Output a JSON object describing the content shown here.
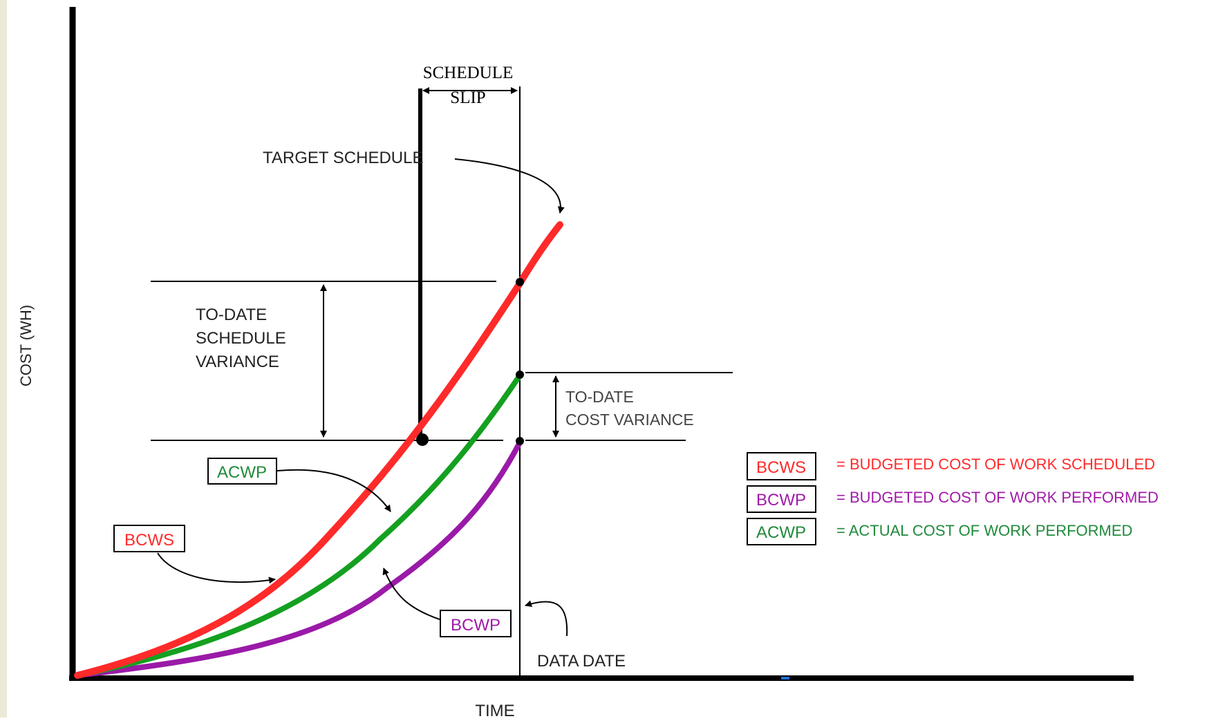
{
  "axes": {
    "y_label": "COST (WH)",
    "x_label": "TIME"
  },
  "annotations": {
    "schedule_slip_line1": "SCHEDULE",
    "schedule_slip_line2": "SLIP",
    "target_schedule": "TARGET SCHEDULE",
    "schedule_variance_line1": "TO-DATE",
    "schedule_variance_line2": "SCHEDULE",
    "schedule_variance_line3": "VARIANCE",
    "cost_variance_line1": "TO-DATE",
    "cost_variance_line2": "COST VARIANCE",
    "data_date": "DATA DATE"
  },
  "curve_labels": {
    "acwp": "ACWP",
    "bcws": "BCWS",
    "bcwp": "BCWP"
  },
  "legend": [
    {
      "abbr": "BCWS",
      "definition": "= BUDGETED COST OF WORK SCHEDULED",
      "color": "#ff2a2a"
    },
    {
      "abbr": "BCWP",
      "definition": "= BUDGETED COST OF WORK PERFORMED",
      "color": "#a01aa8"
    },
    {
      "abbr": "ACWP",
      "definition": "= ACTUAL COST OF WORK PERFORMED",
      "color": "#1f8a3a"
    }
  ],
  "colors": {
    "bcws": "#ff2a2a",
    "acwp": "#14a020",
    "bcwp": "#9a1aa8",
    "legend_acwp_text": "#1f8a3a",
    "left_strip": "#ece9d8"
  }
}
